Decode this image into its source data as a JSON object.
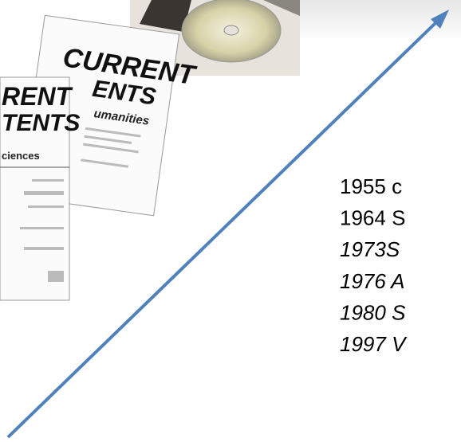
{
  "covers": {
    "back": {
      "title1": "CURRENT",
      "title2": "ENTS",
      "subtitle": "umanities"
    },
    "front": {
      "title1": "RENT",
      "title2": "TENTS",
      "subtitle": "ciences"
    }
  },
  "timeline": [
    "1955 c",
    "1964 S",
    "1973S",
    "1976 A",
    "1980 S",
    "1997 V"
  ]
}
